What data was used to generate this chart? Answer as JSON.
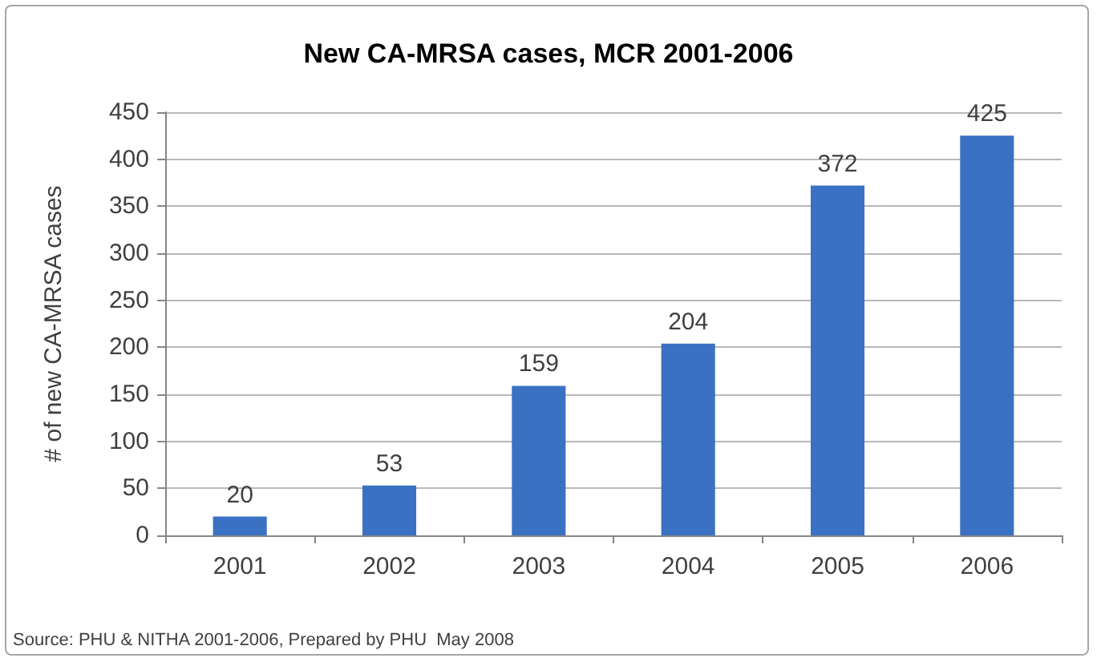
{
  "chart_data": {
    "type": "bar",
    "title": "New CA-MRSA cases, MCR 2001-2006",
    "ylabel": "# of new CA-MRSA cases",
    "categories": [
      "2001",
      "2002",
      "2003",
      "2004",
      "2005",
      "2006"
    ],
    "values": [
      20,
      53,
      159,
      204,
      372,
      425
    ],
    "color": "#3b71c2",
    "ylim": [
      0,
      450
    ],
    "yticks": [
      0,
      50,
      100,
      150,
      200,
      250,
      300,
      350,
      400,
      450
    ],
    "grid": "y",
    "data_labels": true,
    "annotations": [
      "Source: PHU & NITHA 2001-2006, Prepared by PHU  May 2008"
    ]
  }
}
